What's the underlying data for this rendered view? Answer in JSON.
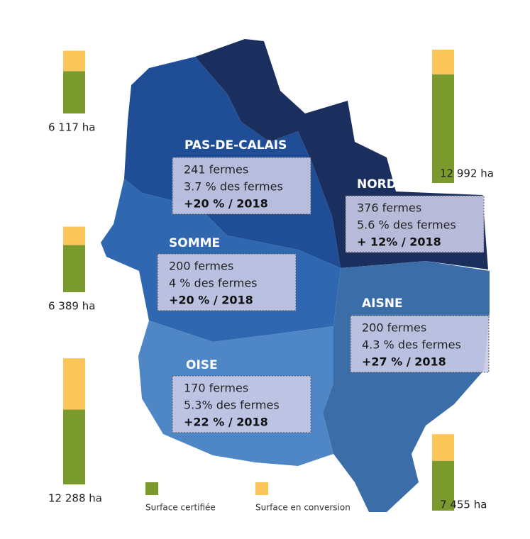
{
  "regions": [
    {
      "name": "PAS-DE-CALAIS",
      "farms": "241 fermes",
      "share": "3.7 % des fermes",
      "change": "+20 % / 2018"
    },
    {
      "name": "NORD",
      "farms": "376 fermes",
      "share": "5.6 %  des fermes",
      "change": "+ 12% / 2018"
    },
    {
      "name": "SOMME",
      "farms": "200 fermes",
      "share": "4 % des fermes",
      "change": "+20 % / 2018"
    },
    {
      "name": "AISNE",
      "farms": "200 fermes",
      "share": "4.3 % des fermes",
      "change": "+27 % / 2018"
    },
    {
      "name": "OISE",
      "farms": "170 fermes",
      "share": "5.3% des fermes",
      "change": "+22 % / 2018"
    }
  ],
  "bars": [
    {
      "certified": 4117,
      "conversion": 2000,
      "label": "6 117 ha"
    },
    {
      "certified": 10592,
      "conversion": 2400,
      "label": "12 992 ha"
    },
    {
      "certified": 4589,
      "conversion": 1800,
      "label": "6 389 ha"
    },
    {
      "certified": 7288,
      "conversion": 5000,
      "label": "12 288 ha"
    },
    {
      "certified": 4855,
      "conversion": 2600,
      "label": "7 455 ha"
    }
  ],
  "legend": {
    "certified": "Surface certifiée",
    "conversion": "Surface en conversion"
  }
}
